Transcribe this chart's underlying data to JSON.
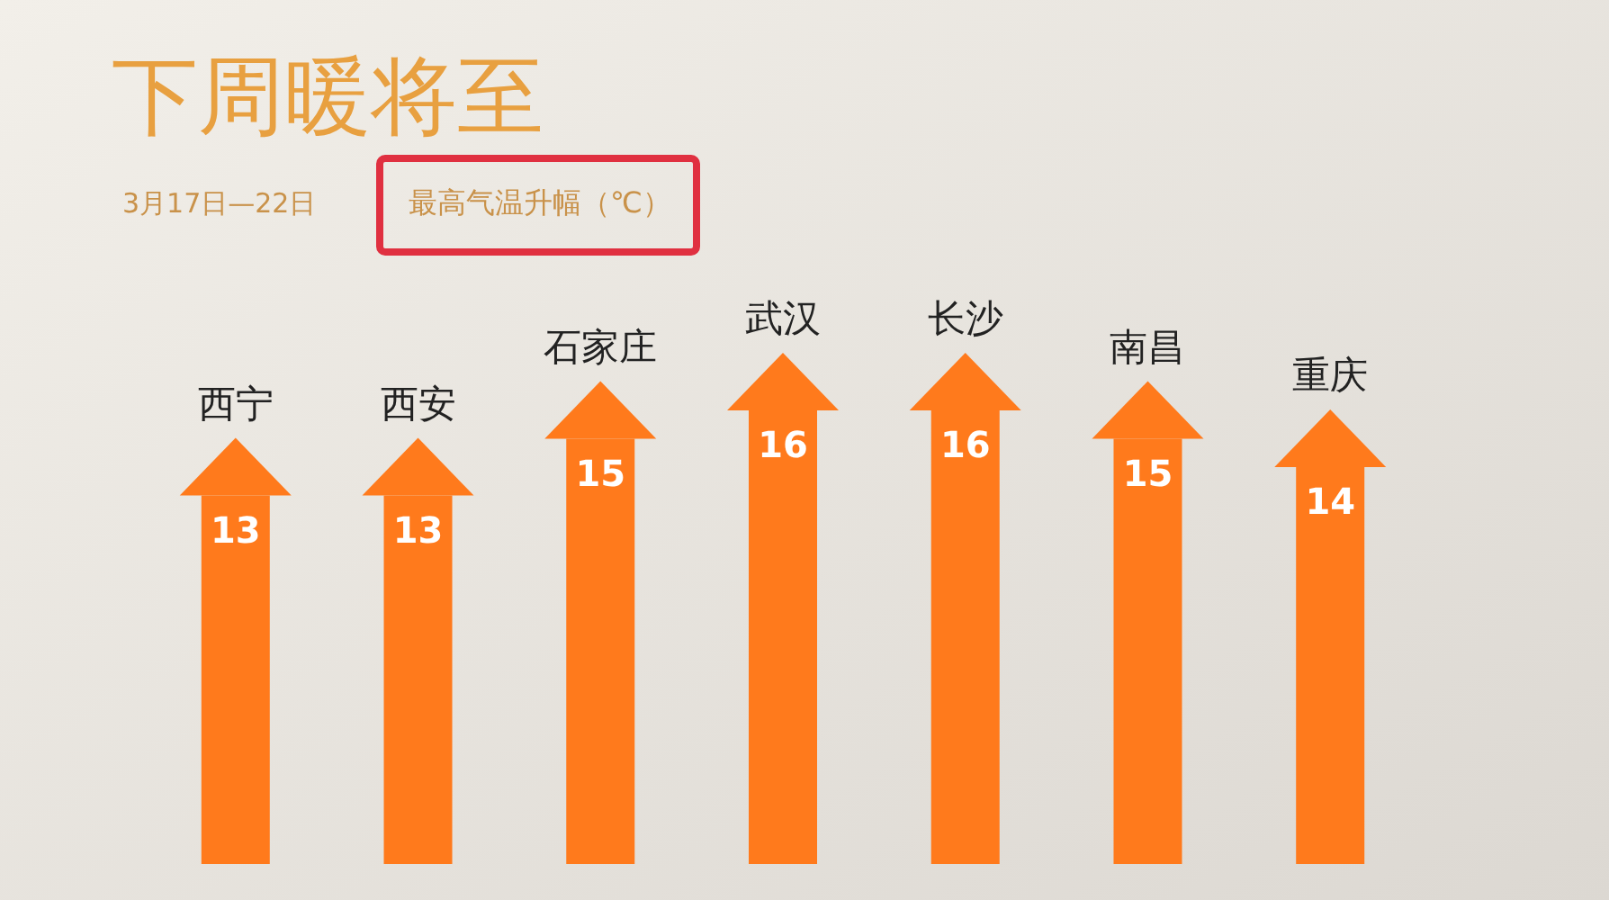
{
  "chart_data": {
    "type": "bar",
    "title": "下周暖将至",
    "subtitle": "3月17日—22日",
    "annotations": [
      "最高气温升幅（℃）"
    ],
    "categories": [
      "西宁",
      "西安",
      "石家庄",
      "武汉",
      "长沙",
      "南昌",
      "重庆"
    ],
    "values": [
      13,
      13,
      15,
      16,
      16,
      15,
      14
    ],
    "color": "#ff7a1c",
    "data_labels": true
  }
}
